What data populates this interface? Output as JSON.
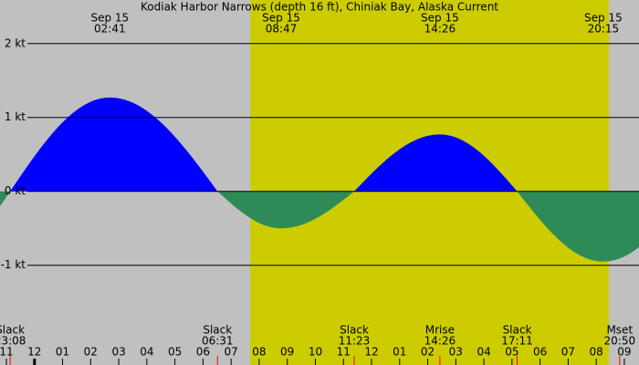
{
  "chart_data": {
    "type": "area",
    "title": "Kodiak Harbor Narrows (depth 16 ft), Chiniak Bay, Alaska Current",
    "date": "Sep 15",
    "slack_label": "Slack",
    "x": [
      "23:08",
      "02:41",
      "06:31",
      "08:47",
      "11:23",
      "14:26",
      "17:11",
      "20:15"
    ],
    "values": [
      0,
      1.27,
      0,
      -0.5,
      0,
      0.77,
      0,
      -0.95
    ],
    "moon_events": [
      {
        "label": "Mrise",
        "time": "14:26"
      },
      {
        "label": "Mset",
        "time": "20:50"
      }
    ],
    "categories": [
      "11",
      "12",
      "01",
      "02",
      "03",
      "04",
      "05",
      "06",
      "07",
      "08",
      "09",
      "10",
      "11",
      "12",
      "01",
      "02",
      "03",
      "04",
      "05",
      "06",
      "07",
      "08",
      "09"
    ],
    "ylim": [
      -2.35,
      2.59
    ],
    "yticks": [
      {
        "value": 2,
        "label": "2 kt"
      },
      {
        "value": 1,
        "label": "1 kt"
      },
      {
        "value": 0,
        "label": "0 kt"
      },
      {
        "value": -1,
        "label": "-1 kt"
      }
    ],
    "daylight": [
      "07:41",
      "20:27"
    ],
    "flood_color": "#0000ff",
    "ebb_color": "#2e8b57",
    "background": "#c0c0c0",
    "daylight_color": "#cccc00"
  }
}
